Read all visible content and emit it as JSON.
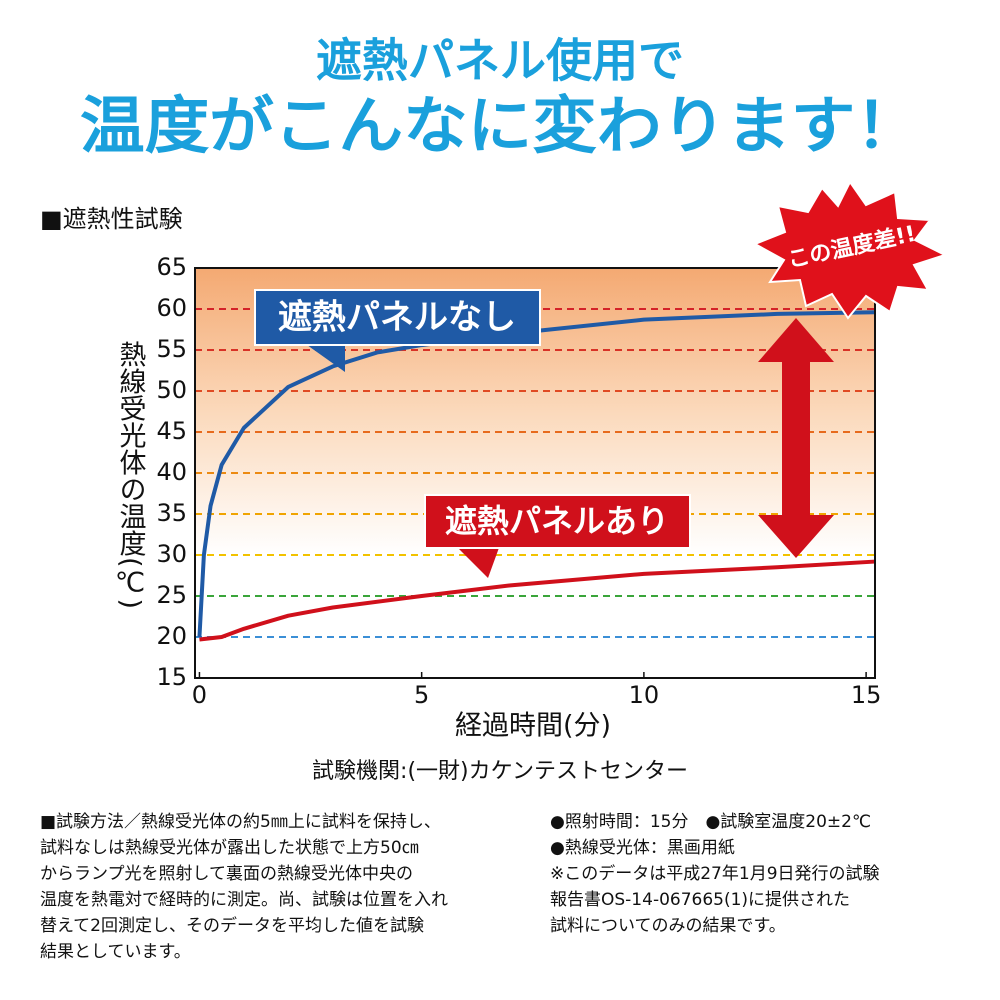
{
  "headline": {
    "line1": "遮熱パネル使用で",
    "line2": "温度がこんなに変わります！"
  },
  "chart_data": {
    "type": "line",
    "title": "■遮熱性試験",
    "y_label": "熱線受光体の温度(℃)",
    "x_label": "経過時間(分)",
    "annotation": "この温度差!!",
    "source": "試験機関:(一財)カケンテストセンター",
    "xlim": [
      -0.1,
      15.2
    ],
    "xticks": [
      0,
      5,
      10,
      15
    ],
    "ylim": [
      15,
      65
    ],
    "yticks": [
      15,
      20,
      25,
      30,
      35,
      40,
      45,
      50,
      55,
      60,
      65
    ],
    "grid": true,
    "grid_colors": [
      "#222222",
      "#3b8fd6",
      "#3aa53a",
      "#f2c200",
      "#f0a400",
      "#ec8a12",
      "#e76a1c",
      "#e04a22",
      "#d83226",
      "#d42228",
      "#d11f2a"
    ],
    "series": [
      {
        "name": "遮熱パネルなし",
        "color": "#1f5aa6",
        "x": [
          0,
          0.1,
          0.25,
          0.5,
          1,
          2,
          3,
          4,
          5,
          7,
          10,
          13,
          15.2
        ],
        "values": [
          20,
          30,
          36,
          41,
          45.5,
          50.5,
          53,
          54.7,
          55.6,
          57,
          58.7,
          59.4,
          59.6
        ]
      },
      {
        "name": "遮熱パネルあり",
        "color": "#d0101b",
        "x": [
          0,
          0.5,
          1,
          2,
          3,
          5,
          7,
          10,
          13,
          15.2
        ],
        "values": [
          19.7,
          20,
          21,
          22.6,
          23.6,
          25,
          26.3,
          27.7,
          28.5,
          29.2
        ]
      }
    ]
  },
  "notes": {
    "left": [
      "■試験方法／熱線受光体の約5㎜上に試料を保持し、",
      "試料なしは熱線受光体が露出した状態で上方50㎝",
      "からランプ光を照射して裏面の熱線受光体中央の",
      "温度を熱電対で経時的に測定。尚、試験は位置を入れ",
      "替えて2回測定し、そのデータを平均した値を試験",
      "結果としています。"
    ],
    "right": [
      "●照射時間：15分　●試験室温度20±2℃",
      "●熱線受光体：黒画用紙",
      "※このデータは平成27年1月9日発行の試験",
      "報告書OS-14-067665(1)に提供された",
      "試料についてのみの結果です。"
    ]
  }
}
